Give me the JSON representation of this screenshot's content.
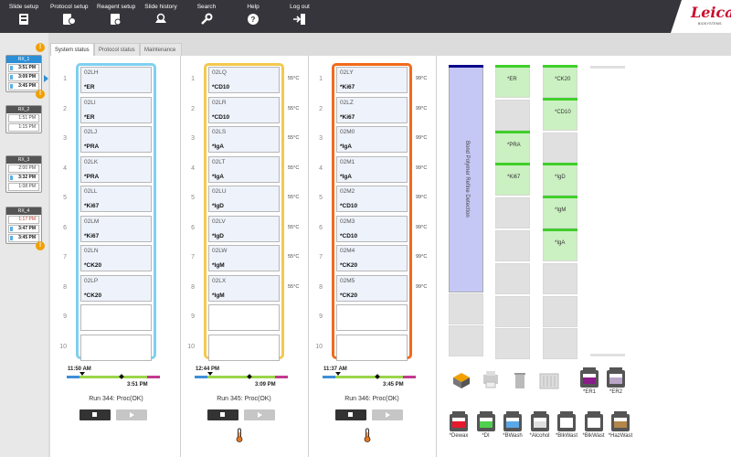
{
  "nav": [
    {
      "label": "Slide setup",
      "icon": "slide-setup-icon"
    },
    {
      "label": "Protocol setup",
      "icon": "protocol-setup-icon"
    },
    {
      "label": "Reagent setup",
      "icon": "reagent-setup-icon"
    },
    {
      "label": "Slide history",
      "icon": "slide-history-icon"
    },
    {
      "label": "Search",
      "icon": "wrench-icon"
    },
    {
      "label": "Help",
      "icon": "help-icon"
    },
    {
      "label": "Log out",
      "icon": "logout-icon"
    }
  ],
  "brand": {
    "name": "Leica",
    "sub": "BIOSYSTEMS"
  },
  "rx": [
    {
      "name": "RX_1",
      "times": [
        "3:51 PM",
        "3:09 PM",
        "3:45 PM"
      ]
    },
    {
      "name": "RX_2",
      "times": [
        "1:51 PM",
        "1:15 PM"
      ]
    },
    {
      "name": "RX_3",
      "times": [
        "2:00 PM",
        "3:32 PM",
        "1:08 PM"
      ]
    },
    {
      "name": "RX_4",
      "times": [
        "1:17 PM",
        "3:47 PM",
        "3:45 PM"
      ]
    }
  ],
  "tabs": [
    "System status",
    "Protocol status",
    "Maintenance"
  ],
  "row_numbers": [
    "1",
    "2",
    "3",
    "4",
    "5",
    "6",
    "7",
    "8",
    "9",
    "10"
  ],
  "trays": [
    {
      "color": "#7fd0f0",
      "slots": [
        {
          "id": "02LH",
          "marker": "*ER"
        },
        {
          "id": "02LI",
          "marker": "*ER"
        },
        {
          "id": "02LJ",
          "marker": "*PRA"
        },
        {
          "id": "02LK",
          "marker": "*PRA"
        },
        {
          "id": "02LL",
          "marker": "*Ki67"
        },
        {
          "id": "02LM",
          "marker": "*Ki67"
        },
        {
          "id": "02LN",
          "marker": "*CK20"
        },
        {
          "id": "02LP",
          "marker": "*CK20"
        }
      ],
      "temps": [],
      "start": "11:50 AM",
      "end": "3:51 PM",
      "run": "Run 344: Proc(OK)",
      "thermometer": false
    },
    {
      "color": "#f5c84c",
      "slots": [
        {
          "id": "02LQ",
          "marker": "*CD10"
        },
        {
          "id": "02LR",
          "marker": "*CD10"
        },
        {
          "id": "02LS",
          "marker": "*IgA"
        },
        {
          "id": "02LT",
          "marker": "*IgA"
        },
        {
          "id": "02LU",
          "marker": "*IgD"
        },
        {
          "id": "02LV",
          "marker": "*IgD"
        },
        {
          "id": "02LW",
          "marker": "*IgM"
        },
        {
          "id": "02LX",
          "marker": "*IgM"
        }
      ],
      "temps": [
        "55°C",
        "55°C",
        "55°C",
        "55°C",
        "55°C",
        "55°C",
        "55°C",
        "55°C"
      ],
      "start": "12:44 PM",
      "end": "3:09 PM",
      "run": "Run 345: Proc(OK)",
      "thermometer": true
    },
    {
      "color": "#f26a1b",
      "slots": [
        {
          "id": "02LY",
          "marker": "*Ki67"
        },
        {
          "id": "02LZ",
          "marker": "*Ki67"
        },
        {
          "id": "02M0",
          "marker": "*IgA"
        },
        {
          "id": "02M1",
          "marker": "*IgA"
        },
        {
          "id": "02M2",
          "marker": "*CD10"
        },
        {
          "id": "02M3",
          "marker": "*CD10"
        },
        {
          "id": "02M4",
          "marker": "*CK20"
        },
        {
          "id": "02M5",
          "marker": "*CK20"
        }
      ],
      "temps": [
        "99°C",
        "99°C",
        "99°C",
        "99°C",
        "99°C",
        "99°C",
        "99°C",
        "99°C"
      ],
      "start": "11:37 AM",
      "end": "3:45 PM",
      "run": "Run 346: Proc(OK)",
      "thermometer": true
    }
  ],
  "reagents": {
    "detection": "Bond Polymer Refine Detection",
    "col2": [
      "*ER",
      "",
      "*PRA",
      "*Ki67",
      "",
      "",
      "",
      ""
    ],
    "col3": [
      "*CK20",
      "*CD10",
      "",
      "*IgD",
      "*IgM",
      "*IgA",
      "",
      ""
    ]
  },
  "small_bottles": [
    {
      "label": "*ER1",
      "color": "#8b1a8b"
    },
    {
      "label": "*ER2",
      "color": "#b9a6c9"
    }
  ],
  "bulk_bottles": [
    {
      "label": "*Dewax",
      "color": "#e8192c"
    },
    {
      "label": "*DI",
      "color": "#4fd04f"
    },
    {
      "label": "*BWash",
      "color": "#5aa8e8"
    },
    {
      "label": "*Alcohol",
      "color": "#e0e0e0"
    },
    {
      "label": "*BlkWast",
      "color": "#ffffff"
    },
    {
      "label": "*BlkWast",
      "color": "#ffffff"
    },
    {
      "label": "*HazWast",
      "color": "#b5864a"
    }
  ],
  "colors": {
    "topbar": "#35353b",
    "accent": "#2d8fd5",
    "brand": "#c8102e",
    "reagent_ok": "#3fcf2a",
    "detection": "#c5c7f5",
    "warning": "#f0a000"
  }
}
